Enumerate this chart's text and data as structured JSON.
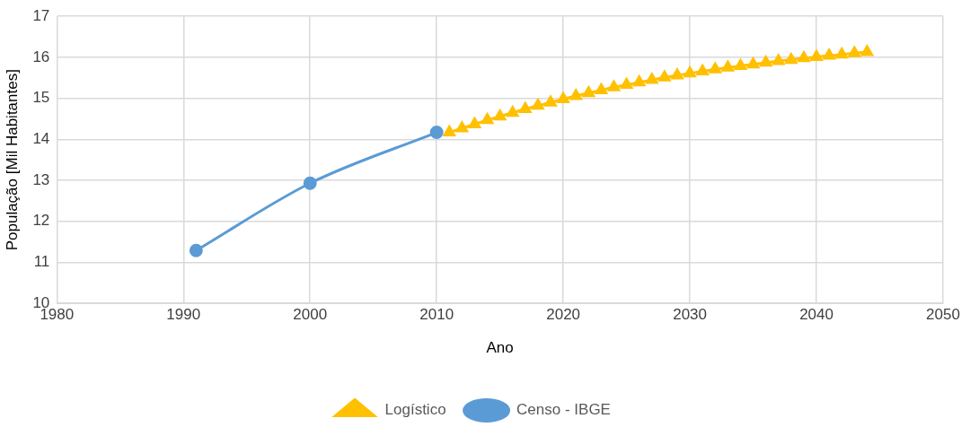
{
  "chart_data": {
    "type": "line",
    "xlabel": "Ano",
    "ylabel": "População [Mil Habitantes]",
    "xlim": [
      1980,
      2050
    ],
    "xticks": [
      1980,
      1990,
      2000,
      2010,
      2020,
      2030,
      2040,
      2050
    ],
    "ylim": [
      10,
      17
    ],
    "yticks": [
      10,
      11,
      12,
      13,
      14,
      15,
      16,
      17
    ],
    "grid": true,
    "legend": "bottom",
    "series": [
      {
        "name": "Logístico",
        "color": "#ffc000",
        "marker": "triangle",
        "x": [
          2011,
          2012,
          2013,
          2014,
          2015,
          2016,
          2017,
          2018,
          2019,
          2020,
          2021,
          2022,
          2023,
          2024,
          2025,
          2026,
          2027,
          2028,
          2029,
          2030,
          2031,
          2032,
          2033,
          2034,
          2035,
          2036,
          2037,
          2038,
          2039,
          2040,
          2041,
          2042,
          2043,
          2044
        ],
        "values": [
          14.17,
          14.27,
          14.37,
          14.47,
          14.56,
          14.65,
          14.74,
          14.82,
          14.9,
          14.98,
          15.06,
          15.13,
          15.2,
          15.27,
          15.33,
          15.39,
          15.45,
          15.51,
          15.56,
          15.61,
          15.66,
          15.71,
          15.75,
          15.79,
          15.83,
          15.87,
          15.91,
          15.94,
          15.98,
          16.01,
          16.04,
          16.07,
          16.1,
          16.13
        ]
      },
      {
        "name": "Censo - IBGE",
        "color": "#5b9bd5",
        "marker": "circle",
        "x": [
          1991,
          2000,
          2010
        ],
        "values": [
          11.29,
          12.93,
          14.17
        ]
      }
    ]
  }
}
